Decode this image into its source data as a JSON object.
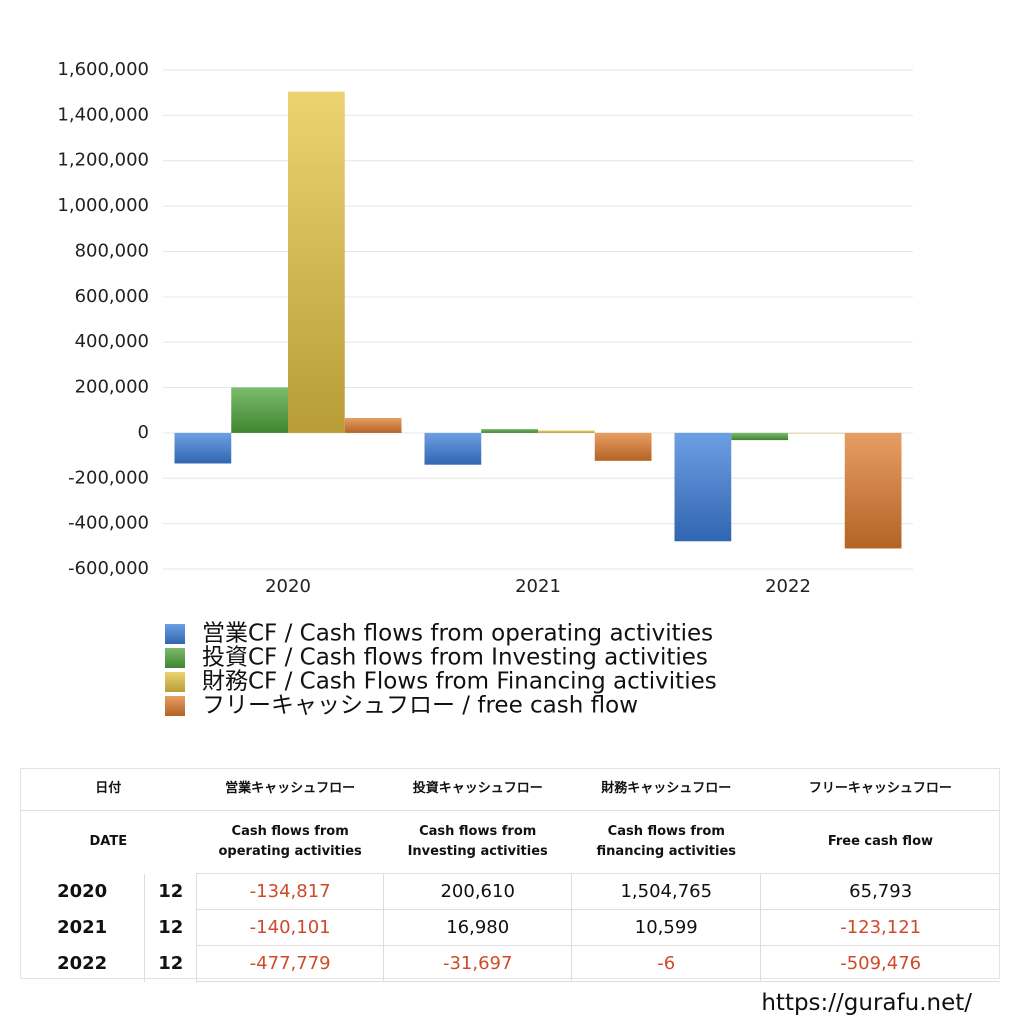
{
  "chart_data": {
    "type": "bar",
    "categories": [
      "2020",
      "2021",
      "2022"
    ],
    "series": [
      {
        "name": "営業CF / Cash flows from operating activities",
        "color": "#3d7fdc",
        "values": [
          -134817,
          -140101,
          -477779
        ]
      },
      {
        "name": "投資CF / Cash flows from Investing activities",
        "color": "#4fa63c",
        "values": [
          200610,
          16980,
          -31697
        ]
      },
      {
        "name": "財務CF / Cash Flows from Financing activities",
        "color": "#e6c443",
        "values": [
          1504765,
          10599,
          -6
        ]
      },
      {
        "name": "フリーキャッシュフロー / free cash flow",
        "color": "#e07d2e",
        "values": [
          65793,
          -123121,
          -509476
        ]
      }
    ],
    "ylim": [
      -600000,
      1600000
    ],
    "yticks": [
      {
        "value": -600000,
        "label": "-600,000"
      },
      {
        "value": -400000,
        "label": "-400,000"
      },
      {
        "value": -200000,
        "label": "-200,000"
      },
      0,
      {
        "value": 200000,
        "label": "200,000"
      },
      {
        "value": 400000,
        "label": "400,000"
      },
      {
        "value": 600000,
        "label": "600,000"
      },
      {
        "value": 800000,
        "label": "800,000"
      },
      {
        "value": 1000000,
        "label": "1,000,000"
      },
      {
        "value": 1200000,
        "label": "1,200,000"
      },
      {
        "value": 1400000,
        "label": "1,400,000"
      },
      {
        "value": 1600000,
        "label": "1,600,000"
      }
    ],
    "grid": true
  },
  "table": {
    "header": [
      [
        "日付",
        "営業キャッシュフロー",
        "投資キャッシュフロー",
        "財務キャッシュフロー",
        "フリーキャッシュフロー"
      ],
      [
        "DATE",
        "Cash flows from\noperating activities",
        "Cash flows from\nInvesting activities",
        "Cash flows from\nfinancing activities",
        "Free cash flow"
      ]
    ],
    "rows": [
      [
        "2020",
        "12",
        "-134,817",
        "200,610",
        "1,504,765",
        "65,793"
      ],
      [
        "2021",
        "12",
        "-140,101",
        "16,980",
        "10,599",
        "-123,121"
      ],
      [
        "2022",
        "12",
        "-477,779",
        "-31,697",
        "-6",
        "-509,476"
      ]
    ]
  },
  "footer": {
    "url": "https://gurafu.net/"
  }
}
